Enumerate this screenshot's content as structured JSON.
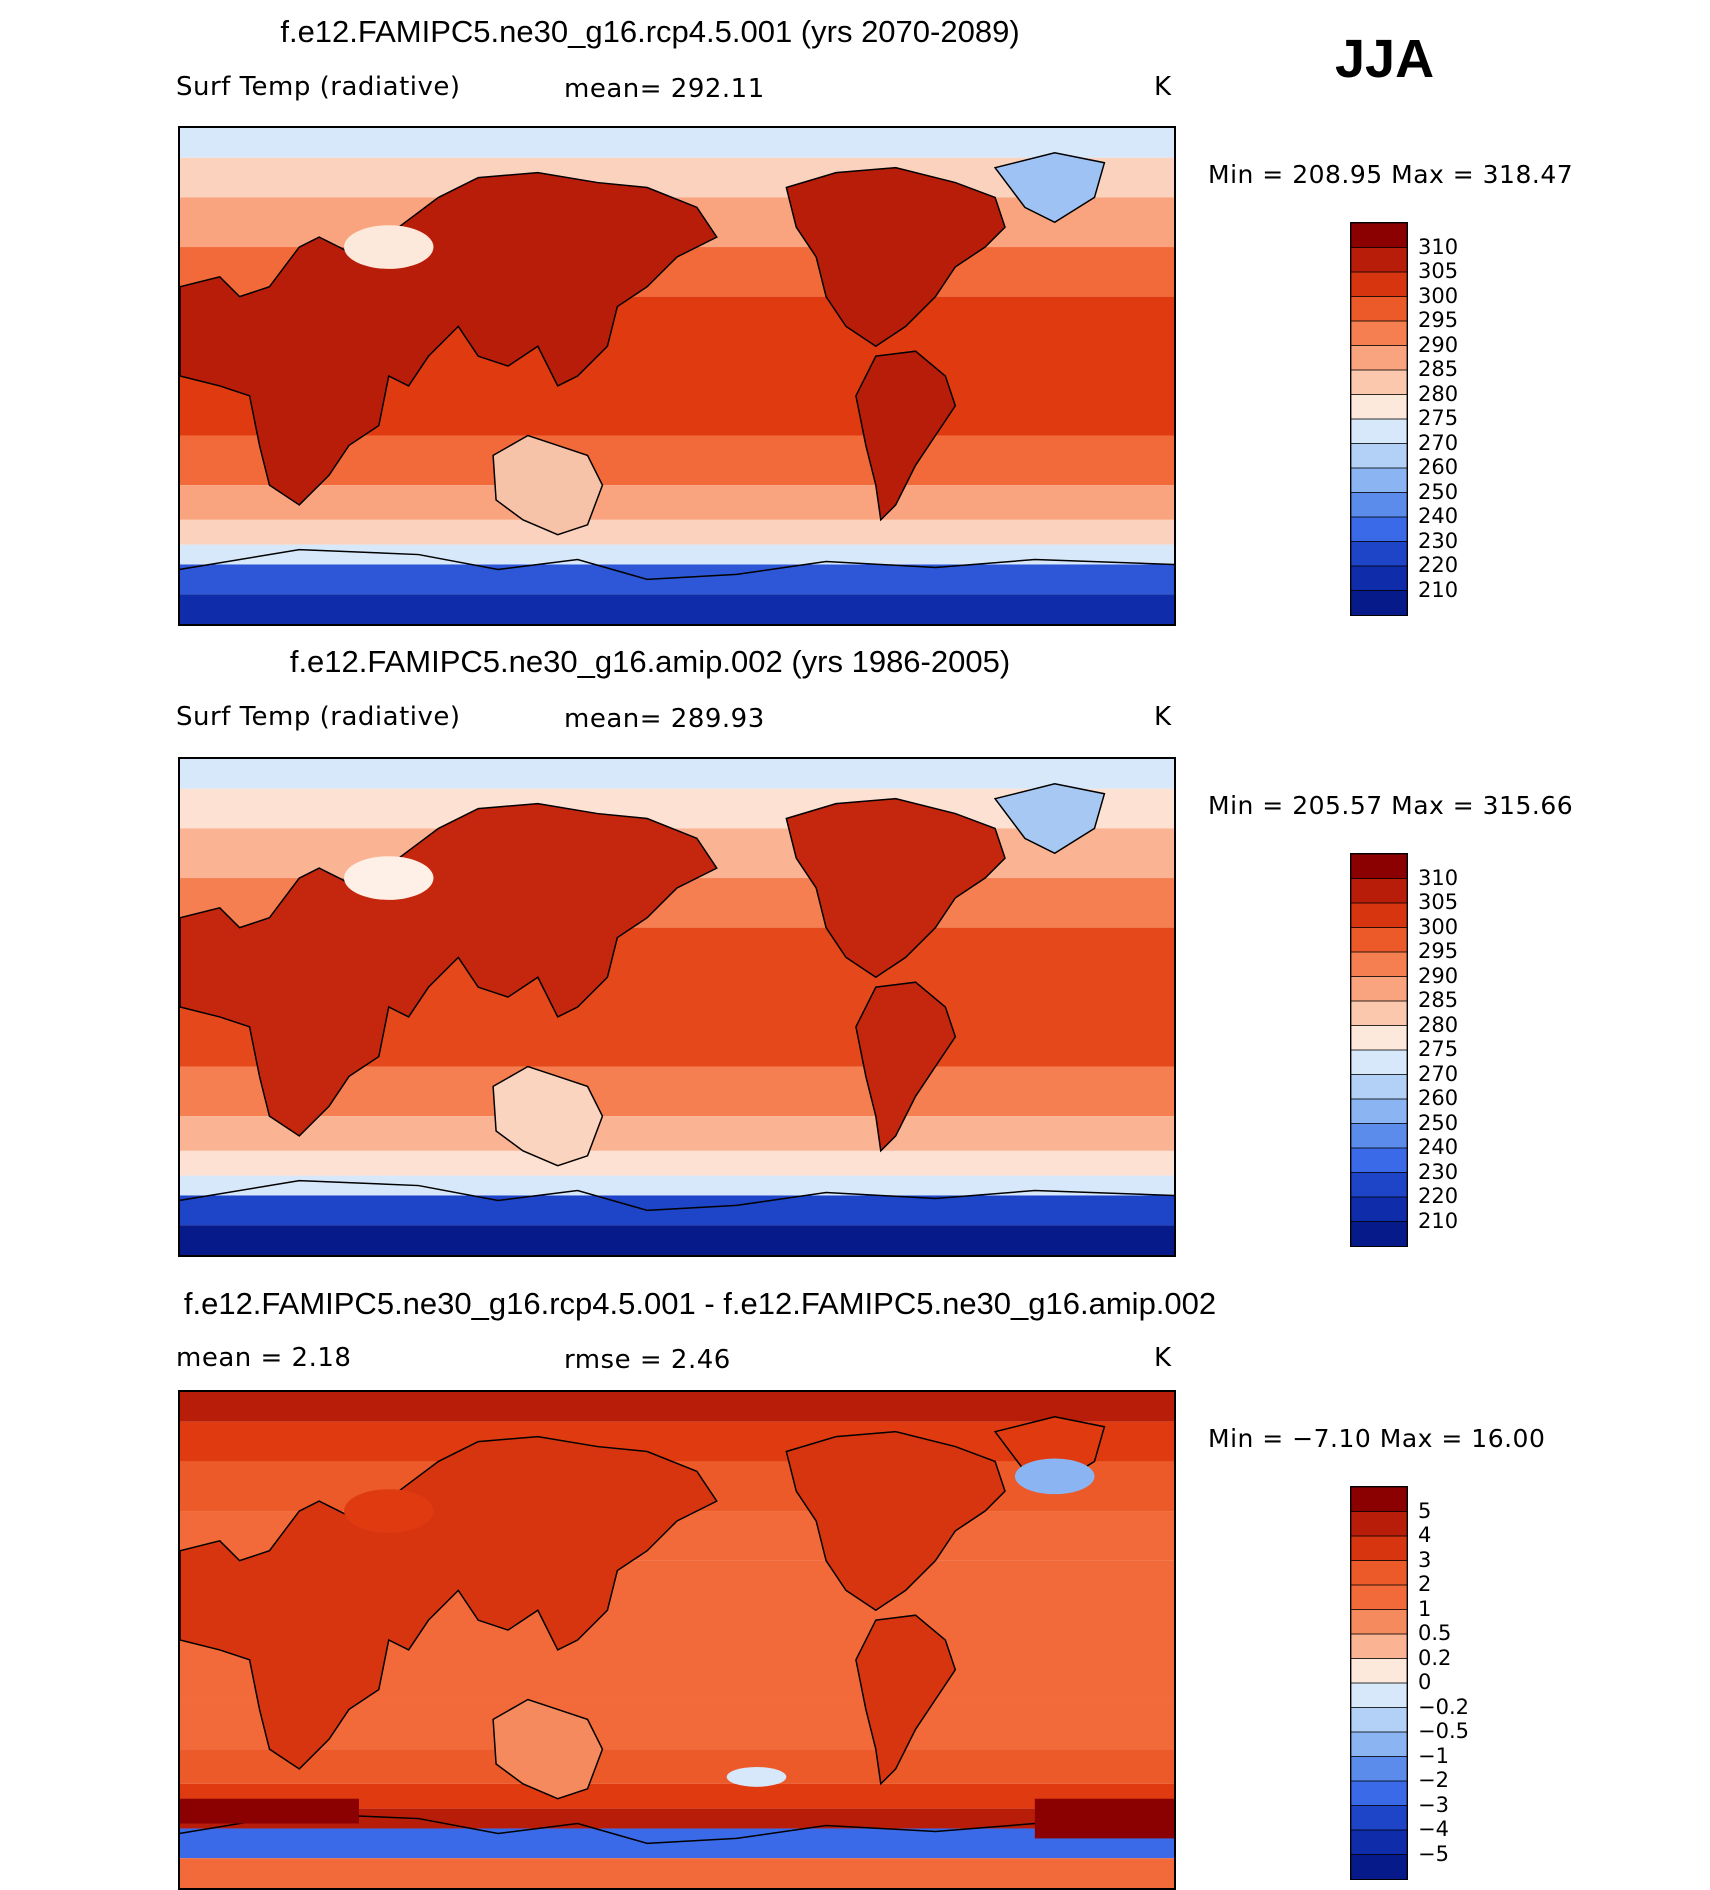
{
  "season": "JJA",
  "panels": [
    {
      "title": "f.e12.FAMIPC5.ne30_g16.rcp4.5.001 (yrs 2070-2089)",
      "variable": "Surf Temp (radiative)",
      "stat1": "mean=  292.11",
      "stat2": "",
      "units": "K",
      "minmax": "Min  =  208.95  Max  =  318.47",
      "map_colors": {
        "ocean_tropics": "#e03a10",
        "ocean_subtropics": "#f26a3a",
        "ocean_midlat": "#f9a47e",
        "ocean_highlat": "#fbd2bd",
        "ocean_polar": "#d6e8fa",
        "land_hot": "#b81d0a",
        "land_cool": "#f7c3a8",
        "plateau": "#fde9dc",
        "greenland": "#9ec2f4",
        "antarctica_edge": "#2d57d6",
        "antarctica_interior": "#0f2cab"
      }
    },
    {
      "title": "f.e12.FAMIPC5.ne30_g16.amip.002 (yrs 1986-2005)",
      "variable": "Surf Temp (radiative)",
      "stat1": "mean=  289.93",
      "stat2": "",
      "units": "K",
      "minmax": "Min  =  205.57  Max  =  315.66",
      "map_colors": {
        "ocean_tropics": "#e5481b",
        "ocean_subtropics": "#f57f50",
        "ocean_midlat": "#fab393",
        "ocean_highlat": "#fde1d2",
        "ocean_polar": "#d6e8fa",
        "land_hot": "#c4260e",
        "land_cool": "#fbd4c0",
        "plateau": "#fef0e6",
        "greenland": "#a8c8f4",
        "antarctica_edge": "#1e44c8",
        "antarctica_interior": "#061a8a"
      }
    },
    {
      "title": "f.e12.FAMIPC5.ne30_g16.rcp4.5.001 - f.e12.FAMIPC5.ne30_g16.amip.002",
      "variable": "mean =     2.18",
      "stat1": "rmse =     2.46",
      "stat2": "",
      "units": "K",
      "minmax": "Min  =    −7.10  Max  =    16.00",
      "map_colors": {
        "ocean_tropics": "#f26a3a",
        "ocean_subtropics": "#f26a3a",
        "ocean_midlat": "#ec5a2a",
        "ocean_highlat": "#e03a10",
        "ocean_polar": "#b81d0a",
        "land_hot": "#d73410",
        "land_cool": "#f58a5e",
        "plateau": "#e03a10",
        "greenland": "#e03a10",
        "antarctica_edge": "#3a6ae8",
        "antarctica_interior": "#f26a3a"
      }
    }
  ],
  "chart_data": [
    {
      "type": "heatmap",
      "title": "f.e12.FAMIPC5.ne30_g16.rcp4.5.001 (yrs 2070-2089)",
      "variable": "Surf Temp (radiative)",
      "units": "K",
      "mean": 292.11,
      "min": 208.95,
      "max": 318.47,
      "colorbar_levels": [
        310,
        305,
        300,
        295,
        290,
        285,
        280,
        275,
        270,
        260,
        250,
        240,
        230,
        220,
        210
      ],
      "colorbar_colors": [
        "#8b0000",
        "#b81d0a",
        "#d73410",
        "#ec5a2a",
        "#f57f50",
        "#f9a47e",
        "#fbc8ad",
        "#fde9dc",
        "#d6e8fa",
        "#b3d1f7",
        "#8ab4f2",
        "#5b8cec",
        "#3a6ae8",
        "#1e44c8",
        "#0f2cab",
        "#061a8a"
      ]
    },
    {
      "type": "heatmap",
      "title": "f.e12.FAMIPC5.ne30_g16.amip.002 (yrs 1986-2005)",
      "variable": "Surf Temp (radiative)",
      "units": "K",
      "mean": 289.93,
      "min": 205.57,
      "max": 315.66,
      "colorbar_levels": [
        310,
        305,
        300,
        295,
        290,
        285,
        280,
        275,
        270,
        260,
        250,
        240,
        230,
        220,
        210
      ],
      "colorbar_colors": [
        "#8b0000",
        "#b81d0a",
        "#d73410",
        "#ec5a2a",
        "#f57f50",
        "#f9a47e",
        "#fbc8ad",
        "#fde9dc",
        "#d6e8fa",
        "#b3d1f7",
        "#8ab4f2",
        "#5b8cec",
        "#3a6ae8",
        "#1e44c8",
        "#0f2cab",
        "#061a8a"
      ]
    },
    {
      "type": "heatmap",
      "title": "f.e12.FAMIPC5.ne30_g16.rcp4.5.001 - f.e12.FAMIPC5.ne30_g16.amip.002",
      "units": "K",
      "mean": 2.18,
      "rmse": 2.46,
      "min": -7.1,
      "max": 16.0,
      "colorbar_levels": [
        "5",
        "4",
        "3",
        "2",
        "1",
        "0.5",
        "0.2",
        "0",
        "−0.2",
        "−0.5",
        "−1",
        "−2",
        "−3",
        "−4",
        "−5"
      ],
      "colorbar_colors": [
        "#8b0000",
        "#b81d0a",
        "#d73410",
        "#ec5a2a",
        "#f26a3a",
        "#f58a5e",
        "#fab393",
        "#fde9dc",
        "#d6e8fa",
        "#b3d1f7",
        "#8ab4f2",
        "#5b8cec",
        "#3a6ae8",
        "#1e44c8",
        "#0f2cab",
        "#061a8a"
      ]
    }
  ]
}
